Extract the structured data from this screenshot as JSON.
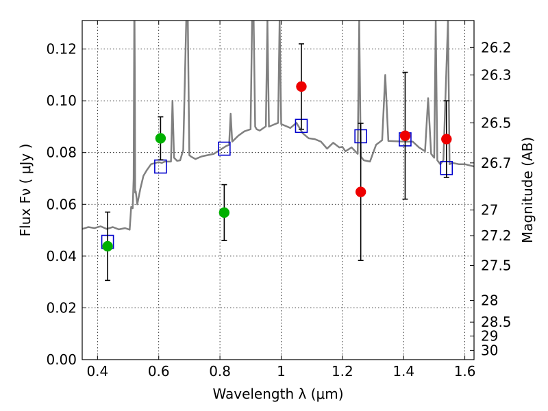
{
  "chart_data": {
    "type": "scatter",
    "xlabel": "Wavelength  λ (μm)",
    "ylabel": "Flux  Fν  ( μJy )",
    "y2label": "Magnitude (AB)",
    "xlim": [
      0.35,
      1.63
    ],
    "ylim": [
      0.0,
      0.131
    ],
    "grid": true,
    "x_ticks": [
      0.4,
      0.6,
      0.8,
      1.0,
      1.2,
      1.4,
      1.6
    ],
    "x_tick_labels": [
      "0.4",
      "0.6",
      "0.8",
      "1",
      "1.2",
      "1.4",
      "1.6"
    ],
    "y_ticks": [
      0.0,
      0.02,
      0.04,
      0.06,
      0.08,
      0.1,
      0.12
    ],
    "y_tick_labels": [
      "0.00",
      "0.02",
      "0.04",
      "0.06",
      "0.08",
      "0.10",
      "0.12"
    ],
    "y2_ticks": [
      {
        "label": "26.2",
        "flux": 0.1206
      },
      {
        "label": "26.3",
        "flux": 0.11
      },
      {
        "label": "26.5",
        "flux": 0.0915
      },
      {
        "label": "26.7",
        "flux": 0.076
      },
      {
        "label": "27",
        "flux": 0.0578
      },
      {
        "label": "27.2",
        "flux": 0.0479
      },
      {
        "label": "27.5",
        "flux": 0.0364
      },
      {
        "label": "28",
        "flux": 0.0229
      },
      {
        "label": "28.5",
        "flux": 0.0145
      },
      {
        "label": "29",
        "flux": 0.0091
      },
      {
        "label": "30",
        "flux": 0.0036
      }
    ],
    "series": [
      {
        "kind": "model-spectrum",
        "color": "#808080",
        "x": [
          0.35,
          0.37,
          0.39,
          0.41,
          0.43,
          0.45,
          0.47,
          0.49,
          0.505,
          0.51,
          0.515,
          0.518,
          0.52,
          0.521,
          0.522,
          0.523,
          0.525,
          0.53,
          0.54,
          0.55,
          0.56,
          0.575,
          0.59,
          0.6,
          0.61,
          0.62,
          0.63,
          0.64,
          0.645,
          0.65,
          0.66,
          0.67,
          0.68,
          0.69,
          0.695,
          0.7,
          0.705,
          0.72,
          0.74,
          0.76,
          0.78,
          0.8,
          0.82,
          0.83,
          0.835,
          0.84,
          0.86,
          0.88,
          0.9,
          0.905,
          0.91,
          0.915,
          0.92,
          0.93,
          0.95,
          0.955,
          0.96,
          0.97,
          0.99,
          0.995,
          1.0,
          1.01,
          1.03,
          1.05,
          1.07,
          1.09,
          1.11,
          1.13,
          1.15,
          1.17,
          1.19,
          1.2,
          1.21,
          1.23,
          1.25,
          1.255,
          1.26,
          1.27,
          1.29,
          1.31,
          1.33,
          1.34,
          1.35,
          1.37,
          1.39,
          1.41,
          1.43,
          1.45,
          1.47,
          1.48,
          1.49,
          1.5,
          1.505,
          1.51,
          1.52,
          1.53,
          1.545,
          1.55,
          1.56,
          1.58,
          1.6,
          1.63
        ],
        "y": [
          0.0505,
          0.0512,
          0.0508,
          0.0515,
          0.0505,
          0.0512,
          0.0503,
          0.0508,
          0.0502,
          0.059,
          0.0585,
          0.07,
          0.131,
          0.131,
          0.105,
          0.0645,
          0.065,
          0.06,
          0.066,
          0.071,
          0.073,
          0.0755,
          0.076,
          0.0763,
          0.076,
          0.0765,
          0.0765,
          0.0765,
          0.1,
          0.078,
          0.0768,
          0.077,
          0.081,
          0.131,
          0.131,
          0.079,
          0.0785,
          0.0775,
          0.0785,
          0.079,
          0.0795,
          0.081,
          0.0825,
          0.083,
          0.095,
          0.0842,
          0.0865,
          0.0882,
          0.089,
          0.131,
          0.131,
          0.09,
          0.089,
          0.0885,
          0.0901,
          0.131,
          0.09,
          0.0905,
          0.0915,
          0.131,
          0.091,
          0.0905,
          0.0895,
          0.0915,
          0.0875,
          0.0855,
          0.0852,
          0.0842,
          0.0815,
          0.0838,
          0.082,
          0.0822,
          0.0805,
          0.082,
          0.0795,
          0.131,
          0.0785,
          0.077,
          0.0765,
          0.083,
          0.0848,
          0.11,
          0.0845,
          0.0844,
          0.0843,
          0.0842,
          0.0842,
          0.082,
          0.0805,
          0.101,
          0.0795,
          0.078,
          0.131,
          0.077,
          0.0755,
          0.077,
          0.131,
          0.0755,
          0.076,
          0.0755,
          0.0755,
          0.0746
        ]
      },
      {
        "kind": "model-photometry",
        "marker": "square",
        "color": "#0000cc",
        "x": [
          0.433,
          0.606,
          0.814,
          1.066,
          1.26,
          1.405,
          1.54
        ],
        "y": [
          0.0455,
          0.0746,
          0.0815,
          0.0903,
          0.0863,
          0.0851,
          0.074
        ]
      },
      {
        "kind": "observed",
        "marker": "circle",
        "color": "#00b000",
        "x": [
          0.433,
          0.606,
          0.814
        ],
        "y": [
          0.0438,
          0.0855,
          0.0568
        ],
        "err": [
          0.0132,
          0.0083,
          0.0108
        ]
      },
      {
        "kind": "observed",
        "marker": "circle",
        "color": "#ee0000",
        "x": [
          1.066,
          1.26,
          1.405,
          1.54
        ],
        "y": [
          0.1055,
          0.0648,
          0.0865,
          0.0852
        ],
        "err": [
          0.0165,
          0.0265,
          0.0245,
          0.0148
        ]
      }
    ]
  }
}
